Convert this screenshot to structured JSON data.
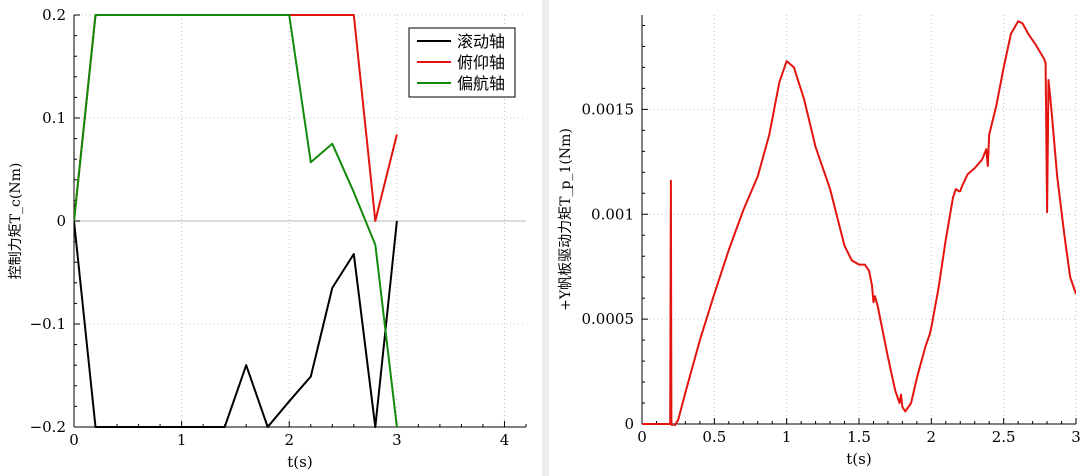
{
  "chart_data": [
    {
      "type": "line",
      "xlabel": "t(s)",
      "ylabel": "控制力矩T_c(Nm)",
      "xlim": [
        0,
        4.2
      ],
      "ylim": [
        -0.2,
        0.2
      ],
      "xticks": [
        0,
        1,
        2,
        3,
        4
      ],
      "yticks": [
        -0.2,
        -0.1,
        0,
        0.1,
        0.2
      ],
      "xtick_labels": [
        "0",
        "1",
        "2",
        "3",
        "4"
      ],
      "ytick_labels": [
        "−0.2",
        "−0.1",
        "0",
        "0.1",
        "0.2"
      ],
      "grid": true,
      "zero_line": true,
      "legend_position": "top-right",
      "series": [
        {
          "name": "滚动轴",
          "color": "#000000",
          "points": [
            [
              0,
              0
            ],
            [
              0.2,
              -0.2
            ],
            [
              1.4,
              -0.2
            ],
            [
              1.6,
              -0.14
            ],
            [
              1.8,
              -0.2
            ],
            [
              2.0,
              -0.175
            ],
            [
              2.2,
              -0.151
            ],
            [
              2.4,
              -0.065
            ],
            [
              2.6,
              -0.032
            ],
            [
              2.8,
              -0.2
            ],
            [
              3.0,
              0.0
            ]
          ]
        },
        {
          "name": "俯仰轴",
          "color": "#e3140f",
          "points": [
            [
              0,
              0
            ],
            [
              0.2,
              0.2
            ],
            [
              2.6,
              0.2
            ],
            [
              2.8,
              0.0
            ],
            [
              3.0,
              0.084
            ]
          ]
        },
        {
          "name": "偏航轴",
          "color": "#128a0b",
          "points": [
            [
              0,
              0
            ],
            [
              0.2,
              0.2
            ],
            [
              2.0,
              0.2
            ],
            [
              2.2,
              0.057
            ],
            [
              2.4,
              0.075
            ],
            [
              2.6,
              0.028
            ],
            [
              2.8,
              -0.023
            ],
            [
              3.0,
              -0.2
            ]
          ]
        }
      ]
    },
    {
      "type": "line",
      "xlabel": "t(s)",
      "ylabel": "+Y帆板驱动力矩T_p_1(Nm)",
      "xlim": [
        0,
        3
      ],
      "ylim": [
        0,
        0.00195
      ],
      "xticks": [
        0,
        0.5,
        1,
        1.5,
        2,
        2.5,
        3
      ],
      "yticks": [
        0,
        0.0005,
        0.001,
        0.0015
      ],
      "xtick_labels": [
        "0",
        "0.5",
        "1",
        "1.5",
        "2",
        "2.5",
        "3"
      ],
      "ytick_labels": [
        "0",
        "0.0005",
        "0.001",
        "0.0015"
      ],
      "grid": true,
      "legend_position": "none",
      "series": [
        {
          "name": "",
          "color": "#e3140f",
          "points": [
            [
              0,
              0.0
            ],
            [
              0.195,
              0.0
            ],
            [
              0.2,
              0.00116
            ],
            [
              0.203,
              0.0
            ],
            [
              0.215,
              -2e-05
            ],
            [
              0.25,
              2e-05
            ],
            [
              0.3,
              0.00015
            ],
            [
              0.4,
              0.0004
            ],
            [
              0.5,
              0.00062
            ],
            [
              0.6,
              0.00083
            ],
            [
              0.7,
              0.00102
            ],
            [
              0.8,
              0.00118
            ],
            [
              0.88,
              0.00138
            ],
            [
              0.95,
              0.00163
            ],
            [
              1.0,
              0.00173
            ],
            [
              1.05,
              0.0017
            ],
            [
              1.12,
              0.00155
            ],
            [
              1.2,
              0.00132
            ],
            [
              1.3,
              0.00112
            ],
            [
              1.4,
              0.00085
            ],
            [
              1.45,
              0.00078
            ],
            [
              1.5,
              0.00076
            ],
            [
              1.54,
              0.00076
            ],
            [
              1.57,
              0.00073
            ],
            [
              1.59,
              0.00066
            ],
            [
              1.6,
              0.00058
            ],
            [
              1.61,
              0.00061
            ],
            [
              1.63,
              0.00056
            ],
            [
              1.7,
              0.00032
            ],
            [
              1.75,
              0.00016
            ],
            [
              1.78,
              0.0001
            ],
            [
              1.79,
              0.00014
            ],
            [
              1.8,
              8e-05
            ],
            [
              1.82,
              6e-05
            ],
            [
              1.86,
              0.0001
            ],
            [
              1.9,
              0.00022
            ],
            [
              1.96,
              0.00037
            ],
            [
              1.99,
              0.00043
            ],
            [
              2.0,
              0.00046
            ],
            [
              2.05,
              0.00065
            ],
            [
              2.1,
              0.00088
            ],
            [
              2.15,
              0.00108
            ],
            [
              2.17,
              0.00112
            ],
            [
              2.19,
              0.00111
            ],
            [
              2.2,
              0.00111
            ],
            [
              2.21,
              0.00113
            ],
            [
              2.25,
              0.00119
            ],
            [
              2.3,
              0.00122
            ],
            [
              2.35,
              0.00126
            ],
            [
              2.38,
              0.00131
            ],
            [
              2.39,
              0.00123
            ],
            [
              2.4,
              0.00138
            ],
            [
              2.45,
              0.00152
            ],
            [
              2.5,
              0.0017
            ],
            [
              2.55,
              0.00186
            ],
            [
              2.6,
              0.00192
            ],
            [
              2.63,
              0.00191
            ],
            [
              2.67,
              0.00186
            ],
            [
              2.72,
              0.00181
            ],
            [
              2.78,
              0.00174
            ],
            [
              2.79,
              0.00172
            ],
            [
              2.8,
              0.00101
            ],
            [
              2.81,
              0.00164
            ],
            [
              2.83,
              0.0015
            ],
            [
              2.87,
              0.00118
            ],
            [
              2.92,
              0.0009
            ],
            [
              2.96,
              0.0007
            ],
            [
              3.0,
              0.00062
            ]
          ]
        }
      ]
    }
  ]
}
